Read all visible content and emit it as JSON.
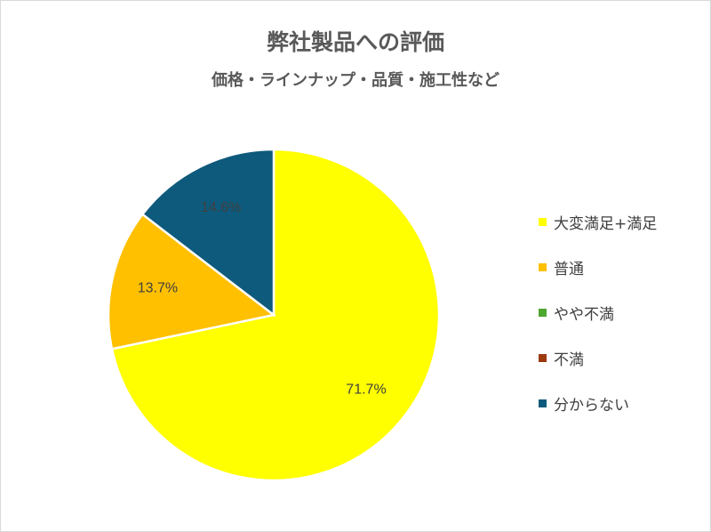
{
  "chart_data": {
    "type": "pie",
    "title": "弊社製品への評価",
    "subtitle": "価格・ラインナップ・品質・施工性など",
    "slices": [
      {
        "label": "大変満足+満足",
        "value": 71.7,
        "value_label": "71.7%",
        "color": "#ffff00"
      },
      {
        "label": "普通",
        "value": 13.7,
        "value_label": "13.7%",
        "color": "#ffc000"
      },
      {
        "label": "やや不満",
        "value": 0,
        "value_label": "",
        "color": "#4ea72e"
      },
      {
        "label": "不満",
        "value": 0,
        "value_label": "",
        "color": "#9c3a0f"
      },
      {
        "label": "分からない",
        "value": 14.6,
        "value_label": "14.6%",
        "color": "#0e5a7c"
      }
    ],
    "legend_position": "right"
  }
}
